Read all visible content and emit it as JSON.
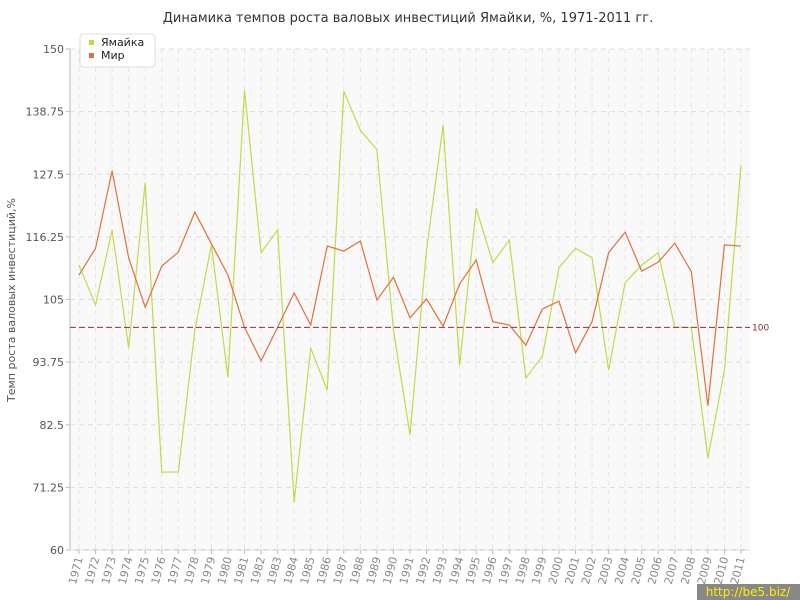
{
  "chart_data": {
    "type": "line",
    "title": "Динамика темпов роста валовых инвестиций Ямайки, %, 1971-2011 гг.",
    "y_label": "Темп роста валовых инвестиций,%",
    "categories": [
      "1971",
      "1972",
      "1973",
      "1974",
      "1975",
      "1976",
      "1977",
      "1978",
      "1979",
      "1980",
      "1981",
      "1982",
      "1983",
      "1984",
      "1985",
      "1986",
      "1987",
      "1988",
      "1989",
      "1990",
      "1991",
      "1992",
      "1993",
      "1994",
      "1995",
      "1996",
      "1997",
      "1998",
      "1999",
      "2000",
      "2001",
      "2002",
      "2003",
      "2004",
      "2005",
      "2006",
      "2007",
      "2008",
      "2009",
      "2010",
      "2011"
    ],
    "series": [
      {
        "name": "Ямайка",
        "color": "#bddc4a",
        "values": [
          111.2,
          104,
          117.5,
          96.3,
          126,
          74,
          74,
          99.5,
          114.8,
          91,
          142.6,
          113.4,
          117.5,
          68.6,
          96.3,
          88.7,
          142.4,
          135.4,
          131.9,
          99.5,
          80.7,
          113.9,
          136.3,
          93.2,
          121.4,
          111.6,
          115.7,
          90.9,
          94.8,
          110.7,
          114.2,
          112.5,
          92.3,
          108,
          111.2,
          113.4,
          100,
          100,
          76.5,
          92.3,
          129.2
        ]
      },
      {
        "name": "Мир",
        "color": "#e0703f",
        "values": [
          109.4,
          114.2,
          128.1,
          112.5,
          103.6,
          111,
          113.5,
          120.7,
          115,
          109.4,
          100,
          94,
          100,
          106.2,
          100.4,
          114.6,
          113.7,
          115.5,
          104.9,
          109,
          101.7,
          105.1,
          100.2,
          107.8,
          112.1,
          101,
          100.4,
          96.8,
          103.3,
          104.7,
          95.4,
          101,
          113.4,
          117.1,
          110.1,
          111.7,
          115.1,
          110,
          85.9,
          114.8,
          114.6
        ]
      }
    ],
    "ylim": [
      60,
      150
    ],
    "yticks": [
      60,
      71.25,
      82.5,
      93.75,
      105,
      116.25,
      127.5,
      138.75,
      150
    ],
    "grid": true,
    "reference_line": 100,
    "reference_color": "#8c3040",
    "legend": "top-left",
    "watermark": "http://be5.biz/"
  }
}
